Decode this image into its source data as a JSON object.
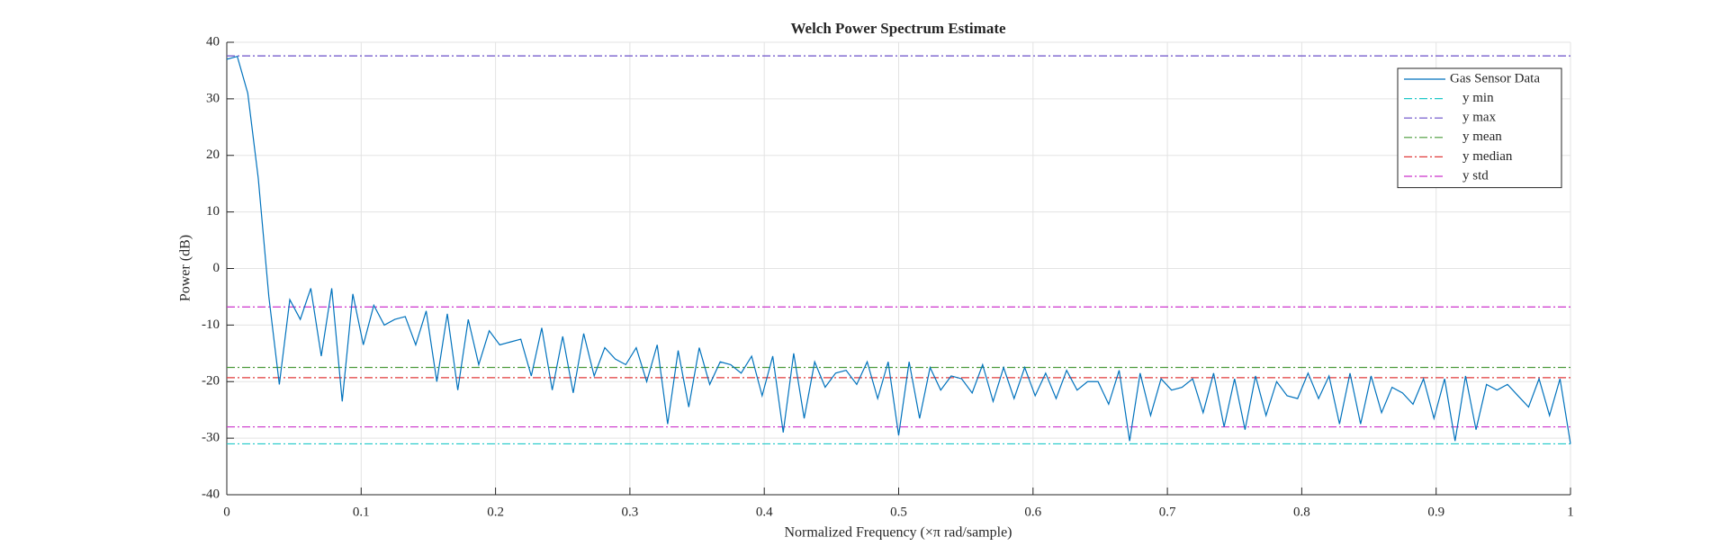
{
  "chart_data": {
    "type": "line",
    "title": "Welch Power Spectrum Estimate",
    "x_label": "Normalized Frequency  (×π rad/sample)",
    "y_label": "Power (dB)",
    "x": [
      0,
      0.0078,
      0.0156,
      0.0234,
      0.0313,
      0.0391,
      0.0469,
      0.0547,
      0.0625,
      0.0703,
      0.0781,
      0.0859,
      0.0938,
      0.1016,
      0.1094,
      0.1172,
      0.125,
      0.1328,
      0.1406,
      0.1484,
      0.1563,
      0.1641,
      0.1719,
      0.1797,
      0.1875,
      0.1953,
      0.2031,
      0.2109,
      0.2188,
      0.2266,
      0.2344,
      0.2422,
      0.25,
      0.2578,
      0.2656,
      0.2734,
      0.2813,
      0.2891,
      0.2969,
      0.3047,
      0.3125,
      0.3203,
      0.3281,
      0.3359,
      0.3438,
      0.3516,
      0.3594,
      0.3672,
      0.375,
      0.3828,
      0.3906,
      0.3984,
      0.4063,
      0.4141,
      0.4219,
      0.4297,
      0.4375,
      0.4453,
      0.4531,
      0.4609,
      0.4688,
      0.4766,
      0.4844,
      0.4922,
      0.5,
      0.5078,
      0.5156,
      0.5234,
      0.5313,
      0.5391,
      0.5469,
      0.5547,
      0.5625,
      0.5703,
      0.5781,
      0.5859,
      0.5938,
      0.6016,
      0.6094,
      0.6172,
      0.625,
      0.6328,
      0.6406,
      0.6484,
      0.6563,
      0.6641,
      0.6719,
      0.6797,
      0.6875,
      0.6953,
      0.7031,
      0.7109,
      0.7188,
      0.7266,
      0.7344,
      0.7422,
      0.75,
      0.7578,
      0.7656,
      0.7734,
      0.7813,
      0.7891,
      0.7969,
      0.8047,
      0.8125,
      0.8203,
      0.8281,
      0.8359,
      0.8438,
      0.8516,
      0.8594,
      0.8672,
      0.875,
      0.8828,
      0.8906,
      0.8984,
      0.9063,
      0.9141,
      0.9219,
      0.9297,
      0.9375,
      0.9453,
      0.9531,
      0.9609,
      0.9688,
      0.9766,
      0.9844,
      0.9922,
      1
    ],
    "series": [
      {
        "name": "Gas Sensor Data",
        "color": "#0072bd",
        "values": [
          37,
          37.5,
          31,
          16,
          -5,
          -20.5,
          -5.5,
          -9,
          -3.5,
          -15.5,
          -3.5,
          -23.5,
          -4.5,
          -13.5,
          -6.5,
          -10,
          -9,
          -8.5,
          -13.5,
          -7.5,
          -20,
          -8,
          -21.5,
          -9,
          -17,
          -11,
          -13.5,
          -13,
          -12.5,
          -19,
          -10.5,
          -21.5,
          -12,
          -22,
          -11.5,
          -19,
          -14,
          -16,
          -17,
          -14,
          -20,
          -13.5,
          -27.5,
          -14.5,
          -24.5,
          -14,
          -20.5,
          -16.5,
          -17,
          -18.5,
          -15.5,
          -22.5,
          -15.5,
          -29,
          -15,
          -26.5,
          -16.5,
          -21,
          -18.5,
          -18,
          -20.5,
          -16.5,
          -23,
          -16.5,
          -29.5,
          -16.5,
          -26.5,
          -17.5,
          -21.5,
          -19,
          -19.5,
          -22,
          -17,
          -23.5,
          -17.5,
          -23,
          -17.5,
          -22.5,
          -18.5,
          -23,
          -18,
          -21.5,
          -20,
          -20,
          -24,
          -18,
          -30.5,
          -18.5,
          -26,
          -19.5,
          -21.5,
          -21,
          -19.5,
          -25.5,
          -18.5,
          -28,
          -19.5,
          -28.5,
          -19,
          -26,
          -20,
          -22.5,
          -23,
          -18.5,
          -23,
          -19,
          -27.5,
          -18.5,
          -27.5,
          -19,
          -25.5,
          -21,
          -22,
          -24,
          -19.5,
          -26.5,
          -19.5,
          -30.5,
          -19,
          -28.5,
          -20.5,
          -21.5,
          -20.5,
          -22.5,
          -24.5,
          -19.5,
          -26,
          -19.5,
          -31
        ]
      }
    ],
    "reference_lines": [
      {
        "name": "y min",
        "color": "#1fc8c8",
        "values": [
          -31
        ]
      },
      {
        "name": "y max",
        "color": "#6a4fc8",
        "values": [
          37.6
        ]
      },
      {
        "name": "y mean",
        "color": "#4a9a3a",
        "values": [
          -17.5
        ]
      },
      {
        "name": "y median",
        "color": "#e03a3a",
        "values": [
          -19.3
        ]
      },
      {
        "name": "y std",
        "color": "#cc33cc",
        "values": [
          -6.8,
          -28
        ]
      }
    ],
    "xlim": [
      0,
      1
    ],
    "ylim": [
      -40,
      40
    ],
    "xticks": [
      0,
      0.1,
      0.2,
      0.3,
      0.4,
      0.5,
      0.6,
      0.7,
      0.8,
      0.9,
      1
    ],
    "yticks": [
      -40,
      -30,
      -20,
      -10,
      0,
      10,
      20,
      30,
      40
    ],
    "grid": true,
    "legend": "northeast"
  }
}
